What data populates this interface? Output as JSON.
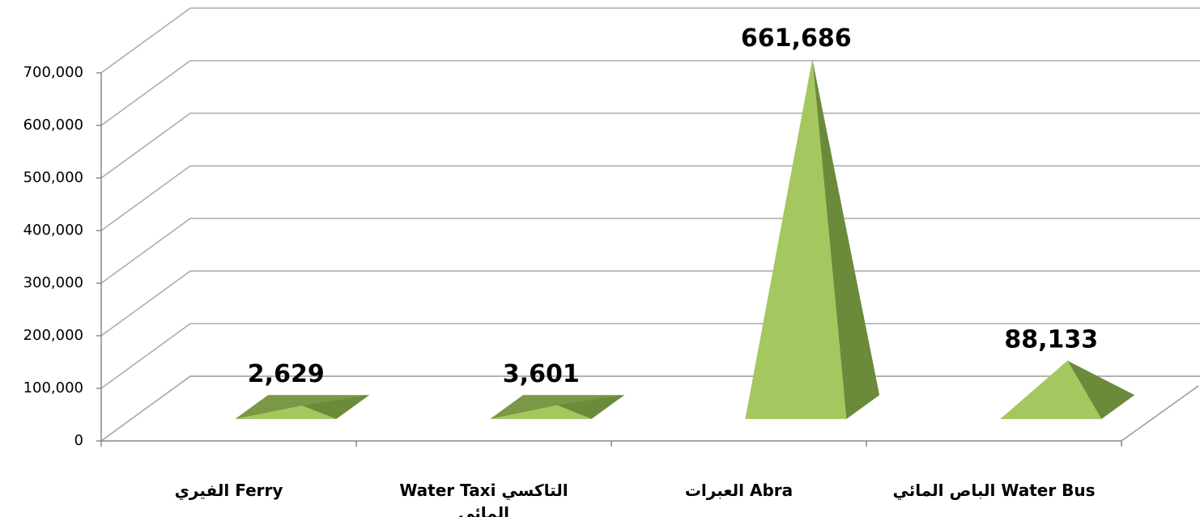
{
  "chart_data": {
    "type": "pyramid",
    "categories": [
      "الفيري  Ferry",
      "Water Taxi  التاكسي\nالمائي",
      "العبرات Abra",
      "الباص المائي Water Bus"
    ],
    "values": [
      2629,
      3601,
      661686,
      88133
    ],
    "value_labels": [
      "2,629",
      "3,601",
      "661,686",
      "88,133"
    ],
    "color": "#a4c75f",
    "ylim": [
      0,
      700000
    ],
    "yticks": [
      0,
      {
        "value": 100000,
        "label": "100,000"
      },
      {
        "value": 200000,
        "label": "200,000"
      },
      {
        "value": 300000,
        "label": "300,000"
      },
      {
        "value": 400000,
        "label": "400,000"
      },
      {
        "value": 500000,
        "label": "500,000"
      },
      {
        "value": 600000,
        "label": "600,000"
      },
      {
        "value": 700000,
        "label": "700,000"
      }
    ],
    "grid": true
  }
}
